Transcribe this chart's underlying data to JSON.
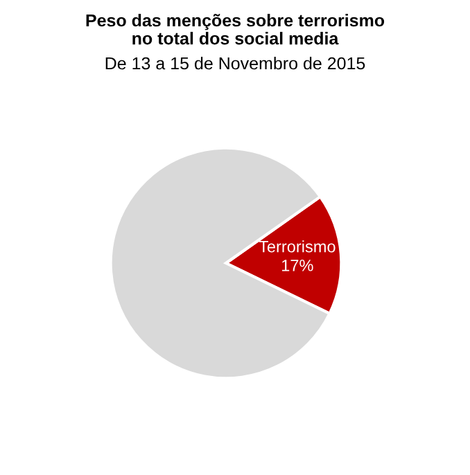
{
  "chart_data": {
    "type": "pie",
    "title": "Peso das menções sobre terrorismo\nno total dos social media",
    "subtitle": "De 13 a 15 de Novembro de 2015",
    "categories": [
      "Terrorismo",
      null
    ],
    "values": [
      17,
      83
    ],
    "colors": [
      "#c00000",
      "#d9d9d9"
    ],
    "value_labels": [
      "17%",
      null
    ]
  }
}
